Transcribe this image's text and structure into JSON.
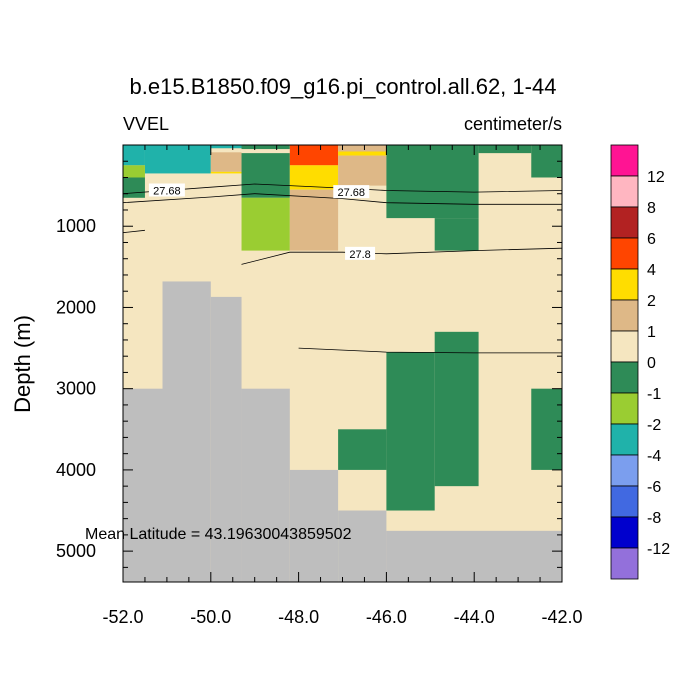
{
  "chart_data": {
    "type": "heatmap",
    "title": "b.e15.B1850.f09_g16.pi_control.all.62, 1-44",
    "left_label": "VVEL",
    "right_label": "centimeter/s",
    "ylabel": "Depth (m)",
    "xlabel": "",
    "annotation": "Mean Latitude = 43.19630043859502",
    "xlim": [
      -52.0,
      -42.0
    ],
    "ylim": [
      5380,
      0
    ],
    "x_ticks": [
      "-52.0",
      "-50.0",
      "-48.0",
      "-46.0",
      "-44.0",
      "-42.0"
    ],
    "x_tick_values": [
      -52,
      -50,
      -48,
      -46,
      -44,
      -42
    ],
    "y_ticks": [
      "1000",
      "2000",
      "3000",
      "4000",
      "5000"
    ],
    "y_tick_values": [
      1000,
      2000,
      3000,
      4000,
      5000
    ],
    "colorbar": {
      "labels": [
        "12",
        "8",
        "6",
        "4",
        "2",
        "1",
        "0",
        "-1",
        "-2",
        "-4",
        "-6",
        "-8",
        "-12"
      ],
      "colors": [
        "#ff1493",
        "#ffb6c1",
        "#b22222",
        "#ff4500",
        "#ffdd00",
        "#deb887",
        "#f5e6c0",
        "#2e8b57",
        "#9acd32",
        "#20b2aa",
        "#7b9eee",
        "#4169e1",
        "#0000cd",
        "#9370db"
      ]
    },
    "colors": {
      "land": "#bebebe",
      "zero": "#f5e6c0",
      "neg1": "#2e8b57",
      "neg2": "#9acd32",
      "neg4": "#20b2aa",
      "pos1": "#deb887",
      "pos2": "#ffdd00",
      "pos4": "#ff4500"
    },
    "cells": [
      {
        "x": [
          -52.0,
          -51.5
        ],
        "y": [
          0,
          250
        ],
        "v": "neg4"
      },
      {
        "x": [
          -51.5,
          -50.0
        ],
        "y": [
          0,
          350
        ],
        "v": "neg4"
      },
      {
        "x": [
          -52.0,
          -51.5
        ],
        "y": [
          250,
          400
        ],
        "v": "neg2"
      },
      {
        "x": [
          -52.0,
          -51.5
        ],
        "y": [
          400,
          650
        ],
        "v": "neg1"
      },
      {
        "x": [
          -50.0,
          -48.9
        ],
        "y": [
          0,
          40
        ],
        "v": "neg4"
      },
      {
        "x": [
          -50.0,
          -49.3
        ],
        "y": [
          90,
          330
        ],
        "v": "pos1"
      },
      {
        "x": [
          -50.0,
          -49.3
        ],
        "y": [
          330,
          350
        ],
        "v": "pos2"
      },
      {
        "x": [
          -49.3,
          -48.2
        ],
        "y": [
          0,
          50
        ],
        "v": "neg1"
      },
      {
        "x": [
          -49.3,
          -48.2
        ],
        "y": [
          100,
          650
        ],
        "v": "neg1"
      },
      {
        "x": [
          -49.3,
          -48.2
        ],
        "y": [
          650,
          1300
        ],
        "v": "neg2"
      },
      {
        "x": [
          -48.2,
          -47.1
        ],
        "y": [
          0,
          250
        ],
        "v": "pos4"
      },
      {
        "x": [
          -48.2,
          -47.1
        ],
        "y": [
          250,
          550
        ],
        "v": "pos2"
      },
      {
        "x": [
          -48.2,
          -47.1
        ],
        "y": [
          550,
          1300
        ],
        "v": "pos1"
      },
      {
        "x": [
          -47.1,
          -46.0
        ],
        "y": [
          0,
          80
        ],
        "v": "pos1"
      },
      {
        "x": [
          -47.1,
          -46.0
        ],
        "y": [
          80,
          130
        ],
        "v": "pos2"
      },
      {
        "x": [
          -47.1,
          -46.0
        ],
        "y": [
          130,
          500
        ],
        "v": "pos1"
      },
      {
        "x": [
          -46.0,
          -43.9
        ],
        "y": [
          0,
          900
        ],
        "v": "neg1"
      },
      {
        "x": [
          -44.9,
          -43.9
        ],
        "y": [
          900,
          1300
        ],
        "v": "neg1"
      },
      {
        "x": [
          -43.9,
          -42.7
        ],
        "y": [
          0,
          100
        ],
        "v": "neg1"
      },
      {
        "x": [
          -42.7,
          -42.0
        ],
        "y": [
          0,
          400
        ],
        "v": "neg1"
      },
      {
        "x": [
          -46.0,
          -44.9
        ],
        "y": [
          2550,
          4500
        ],
        "v": "neg1"
      },
      {
        "x": [
          -44.9,
          -43.9
        ],
        "y": [
          2300,
          4200
        ],
        "v": "neg1"
      },
      {
        "x": [
          -47.1,
          -46.0
        ],
        "y": [
          3500,
          4000
        ],
        "v": "neg1"
      },
      {
        "x": [
          -42.7,
          -42.0
        ],
        "y": [
          3000,
          4000
        ],
        "v": "neg1"
      }
    ],
    "land": [
      {
        "x": [
          -51.1,
          -50.0
        ],
        "y": [
          1680,
          5380
        ]
      },
      {
        "x": [
          -50.0,
          -49.3
        ],
        "y": [
          1870,
          5380
        ]
      },
      {
        "x": [
          -52.0,
          -51.1
        ],
        "y": [
          3000,
          5380
        ]
      },
      {
        "x": [
          -49.3,
          -48.2
        ],
        "y": [
          3000,
          5380
        ]
      },
      {
        "x": [
          -48.2,
          -47.1
        ],
        "y": [
          4000,
          5380
        ]
      },
      {
        "x": [
          -47.1,
          -46.0
        ],
        "y": [
          4500,
          5380
        ]
      },
      {
        "x": [
          -46.0,
          -42.0
        ],
        "y": [
          4750,
          5380
        ]
      }
    ],
    "contours": [
      {
        "label": "27.68",
        "label_at": [
          -51.0,
          560
        ],
        "points": [
          [
            -52.0,
            600
          ],
          [
            -50.0,
            520
          ],
          [
            -49.0,
            480
          ],
          [
            -47.0,
            530
          ],
          [
            -46.0,
            560
          ],
          [
            -44.0,
            580
          ],
          [
            -42.0,
            560
          ]
        ]
      },
      {
        "label": "27.68",
        "label_at": [
          -46.8,
          580
        ],
        "points": [
          [
            -52.0,
            710
          ],
          [
            -50.0,
            640
          ],
          [
            -49.0,
            600
          ],
          [
            -47.0,
            660
          ],
          [
            -46.0,
            710
          ],
          [
            -44.0,
            730
          ],
          [
            -42.0,
            730
          ]
        ]
      },
      {
        "label": "",
        "label_at": null,
        "points": [
          [
            -52.0,
            1080
          ],
          [
            -51.5,
            1050
          ]
        ]
      },
      {
        "label": "27.8",
        "label_at": [
          -46.6,
          1340
        ],
        "points": [
          [
            -49.3,
            1470
          ],
          [
            -48.2,
            1320
          ],
          [
            -47.0,
            1320
          ],
          [
            -46.0,
            1340
          ],
          [
            -44.0,
            1300
          ],
          [
            -42.0,
            1270
          ]
        ]
      },
      {
        "label": "",
        "label_at": null,
        "points": [
          [
            -48.0,
            2500
          ],
          [
            -46.0,
            2550
          ],
          [
            -44.0,
            2560
          ],
          [
            -42.0,
            2560
          ]
        ]
      }
    ]
  }
}
